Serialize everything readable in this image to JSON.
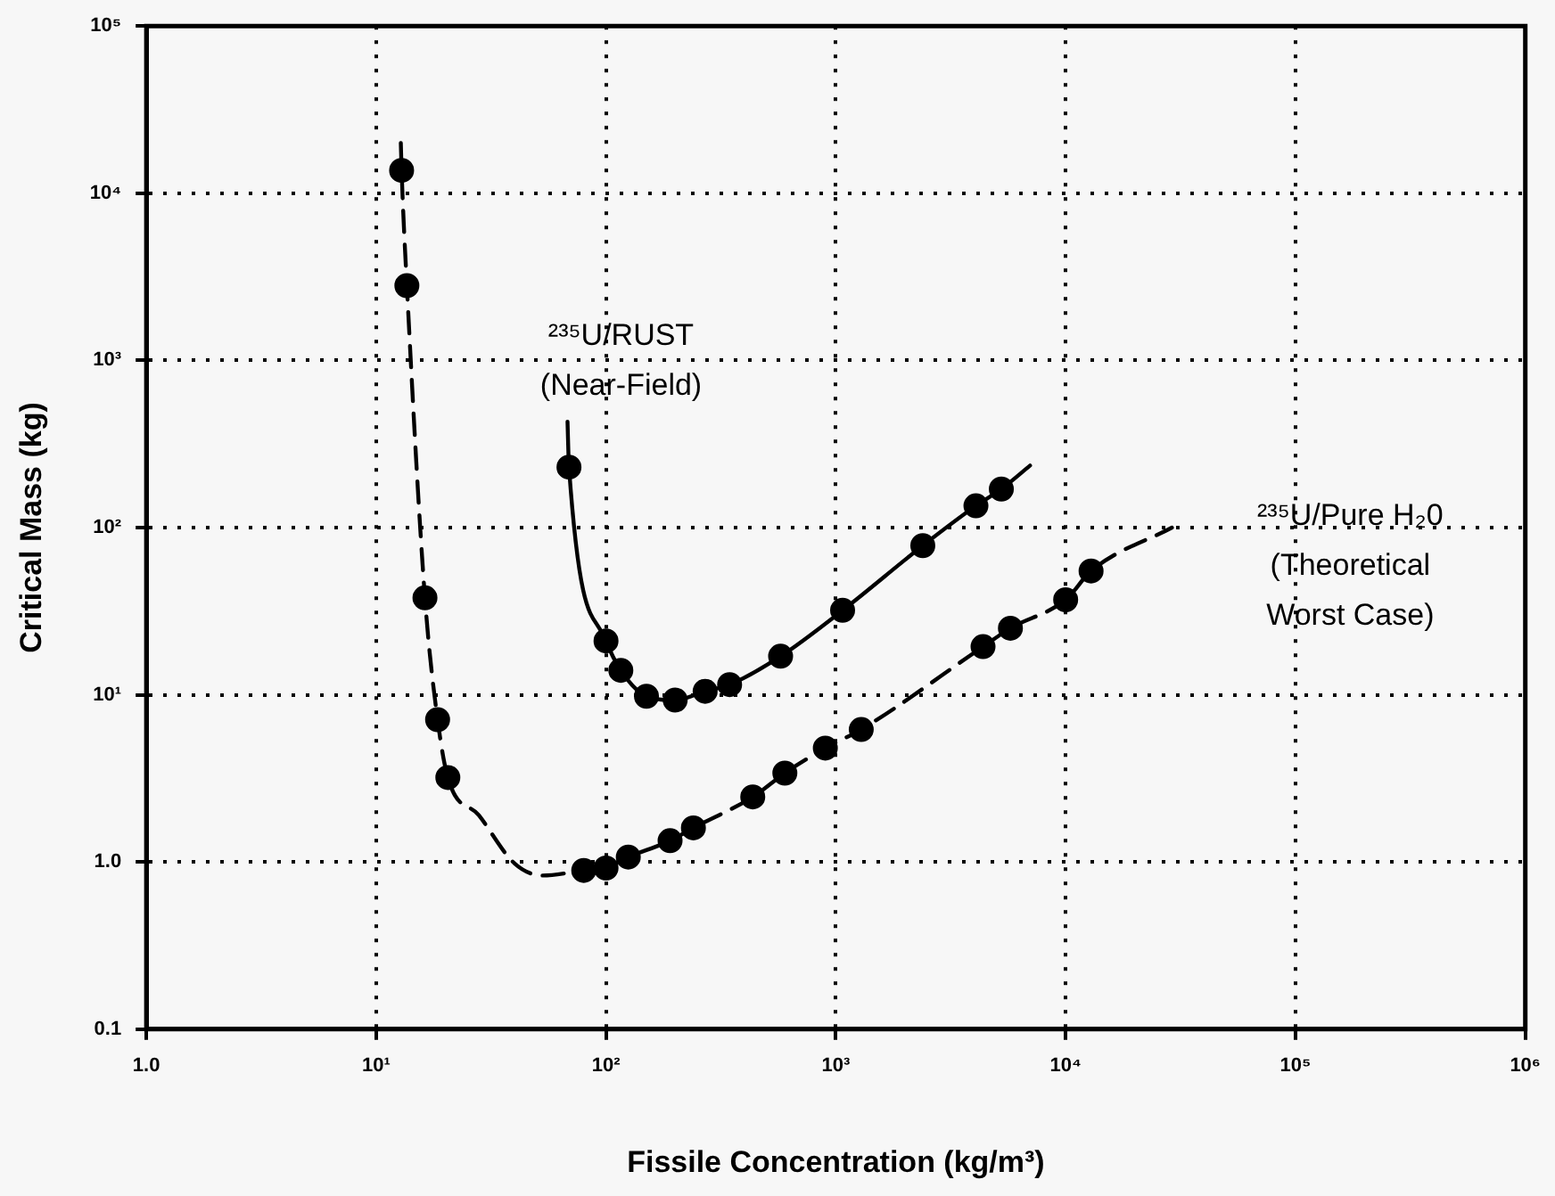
{
  "chart_data": {
    "type": "line",
    "xlabel": "Fissile Concentration (kg/m³)",
    "ylabel": "Critical Mass (kg)",
    "log": "xy",
    "grid": true,
    "legend": false,
    "xlim": [
      1,
      1000000
    ],
    "ylim": [
      0.1,
      100000
    ],
    "xticks": [
      {
        "value": 1,
        "label": "1.0"
      },
      {
        "value": 10,
        "label": "10¹"
      },
      {
        "value": 100,
        "label": "10²"
      },
      {
        "value": 1000,
        "label": "10³"
      },
      {
        "value": 10000,
        "label": "10⁴"
      },
      {
        "value": 100000,
        "label": "10⁵"
      },
      {
        "value": 1000000,
        "label": "10⁶"
      }
    ],
    "yticks": [
      {
        "value": 0.1,
        "label": "0.1"
      },
      {
        "value": 1,
        "label": "1.0"
      },
      {
        "value": 10,
        "label": "10¹"
      },
      {
        "value": 100,
        "label": "10²"
      },
      {
        "value": 1000,
        "label": "10³"
      },
      {
        "value": 10000,
        "label": "10⁴"
      },
      {
        "value": 100000,
        "label": "10⁵"
      }
    ],
    "series": [
      {
        "name": "²³⁵U/RUST\n(Near-Field)",
        "type": "line",
        "color": "#000000",
        "line_style": "solid",
        "marker": "none",
        "x": [
          68,
          69,
          100,
          116,
          150,
          200,
          270,
          345,
          575,
          1070,
          2390,
          4070,
          5250,
          7000
        ],
        "values": [
          430,
          230,
          21,
          14,
          9.8,
          9.3,
          10.5,
          11.5,
          17,
          32,
          78,
          135,
          170,
          235
        ]
      },
      {
        "name": "²³⁵U/Pure H₂0\n(Theoretical\nWorst Case)",
        "type": "line",
        "color": "#000000",
        "line_style": "dashed",
        "marker": "none",
        "x": [
          12.8,
          12.9,
          13.6,
          16.3,
          18.5,
          20.5,
          28,
          40,
          53,
          80,
          100,
          125,
          190,
          240,
          435,
          600,
          900,
          1290,
          4370,
          5750,
          10000,
          12900,
          29000
        ],
        "values": [
          20000,
          13700,
          2800,
          38,
          7.1,
          3.2,
          1.9,
          0.98,
          0.83,
          0.89,
          0.92,
          1.07,
          1.34,
          1.6,
          2.45,
          3.4,
          4.8,
          6.2,
          19.4,
          25,
          37,
          55,
          100
        ]
      },
      {
        "type": "scatter",
        "color": "#000000",
        "marker": "circle",
        "x": [
          69,
          100,
          116,
          150,
          200,
          270,
          345,
          575,
          1070,
          2390,
          4070,
          5250
        ],
        "values": [
          230,
          21,
          14,
          9.8,
          9.3,
          10.5,
          11.5,
          17,
          32,
          78,
          135,
          170
        ]
      },
      {
        "type": "scatter",
        "color": "#000000",
        "marker": "circle",
        "x": [
          12.9,
          13.6,
          16.3,
          18.5,
          20.5,
          80,
          100,
          125,
          190,
          240,
          435,
          600,
          900,
          1290,
          4370,
          5750,
          10000,
          12900
        ],
        "values": [
          13700,
          2800,
          38,
          7.1,
          3.2,
          0.89,
          0.92,
          1.07,
          1.34,
          1.6,
          2.45,
          3.4,
          4.8,
          6.2,
          19.4,
          25,
          37,
          55
        ]
      }
    ]
  }
}
